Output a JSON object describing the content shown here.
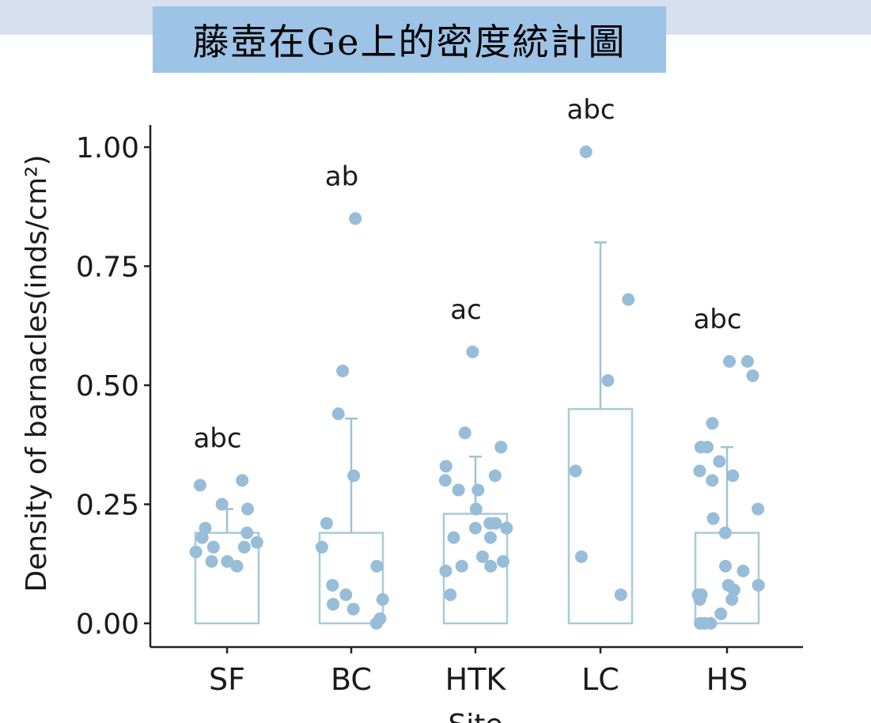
{
  "slide": {
    "title": "藤壺在Ge上的密度統計圖"
  },
  "chart_data": {
    "type": "scatter",
    "subtype": "bar-with-jittered-points",
    "title": "",
    "xlabel": "Site",
    "ylabel": "Density of barnacles(inds/cm²)",
    "ylim": [
      0,
      1.0
    ],
    "yticks": [
      "0.00",
      "0.25",
      "0.50",
      "0.75",
      "1.00"
    ],
    "categories": [
      "SF",
      "BC",
      "HTK",
      "LC",
      "HS"
    ],
    "bar_values": [
      0.19,
      0.19,
      0.23,
      0.45,
      0.19
    ],
    "error_upper": [
      0.24,
      0.43,
      0.35,
      0.8,
      0.37
    ],
    "group_letters": [
      "abc",
      "ab",
      "ac",
      "abc",
      "abc"
    ],
    "points": [
      [
        0.3,
        0.29,
        0.25,
        0.24,
        0.2,
        0.19,
        0.18,
        0.17,
        0.16,
        0.16,
        0.15,
        0.13,
        0.12,
        0.13
      ],
      [
        0.85,
        0.53,
        0.44,
        0.31,
        0.21,
        0.16,
        0.12,
        0.08,
        0.06,
        0.05,
        0.04,
        0.03,
        0.01,
        0.0
      ],
      [
        0.57,
        0.4,
        0.37,
        0.33,
        0.31,
        0.3,
        0.28,
        0.28,
        0.24,
        0.21,
        0.21,
        0.2,
        0.2,
        0.18,
        0.18,
        0.14,
        0.13,
        0.12,
        0.12,
        0.11,
        0.06
      ],
      [
        0.99,
        0.68,
        0.51,
        0.32,
        0.14,
        0.06
      ],
      [
        0.55,
        0.55,
        0.52,
        0.42,
        0.37,
        0.37,
        0.34,
        0.32,
        0.31,
        0.3,
        0.24,
        0.22,
        0.19,
        0.12,
        0.11,
        0.08,
        0.08,
        0.07,
        0.06,
        0.06,
        0.05,
        0.05,
        0.02,
        0.0,
        0.0,
        0.0
      ]
    ],
    "colors": {
      "points": "#97bdd8",
      "bar_stroke": "#a7ccd6",
      "error_bar": "#9fc3d3",
      "axis": "#222222"
    }
  }
}
